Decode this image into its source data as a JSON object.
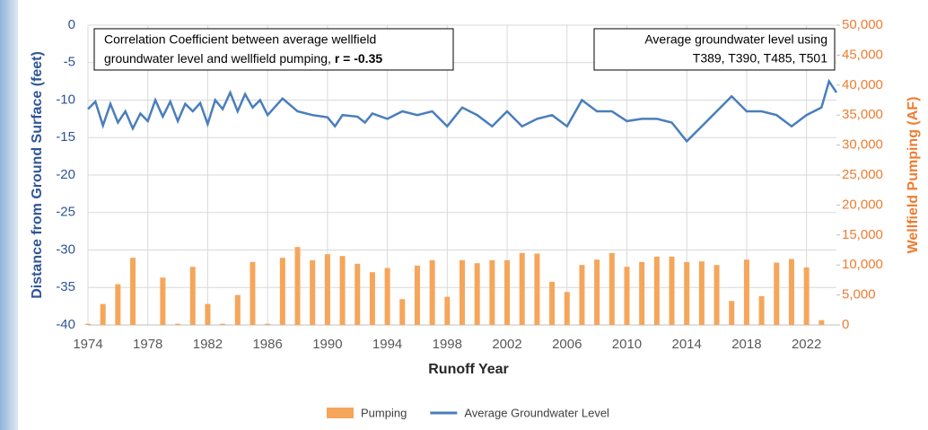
{
  "chart_data": {
    "type": "bar-line",
    "x_label": "Runoff Year",
    "y_label": "Distance from Ground Surface (feet)",
    "y2_label": "Wellfield Pumping (AF)",
    "annotations": [
      {
        "lines": [
          "Correlation Coefficient between average wellfield",
          "groundwater level and wellfield pumping, "
        ],
        "bold": "r = -0.35"
      },
      {
        "lines": [
          "Average groundwater level using",
          "T389, T390, T485, T501"
        ]
      }
    ],
    "xlim": [
      1974,
      2024
    ],
    "xticks": [
      1974,
      1978,
      1982,
      1986,
      1990,
      1994,
      1998,
      2002,
      2006,
      2010,
      2014,
      2018,
      2022
    ],
    "ylim": [
      -40,
      0
    ],
    "yticks": [
      0,
      -5,
      -10,
      -15,
      -20,
      -25,
      -30,
      -35,
      -40
    ],
    "y2lim": [
      0,
      50000
    ],
    "y2ticks": [
      0,
      {
        "value": 5000,
        "label": "5,000"
      },
      {
        "value": 10000,
        "label": "10,000"
      },
      {
        "value": 15000,
        "label": "15,000"
      },
      {
        "value": 20000,
        "label": "20,000"
      },
      {
        "value": 25000,
        "label": "25,000"
      },
      {
        "value": 30000,
        "label": "30,000"
      },
      {
        "value": 35000,
        "label": "35,000"
      },
      {
        "value": 40000,
        "label": "40,000"
      },
      {
        "value": 45000,
        "label": "45,000"
      },
      {
        "value": 50000,
        "label": "50,000"
      }
    ],
    "grid": true,
    "series": [
      {
        "name": "Pumping",
        "type": "bar",
        "axis": "y2",
        "color": "#f5a65b",
        "x": [
          1974,
          1975,
          1976,
          1977,
          1978,
          1979,
          1980,
          1981,
          1982,
          1983,
          1984,
          1985,
          1986,
          1987,
          1988,
          1989,
          1990,
          1991,
          1992,
          1993,
          1994,
          1995,
          1996,
          1997,
          1998,
          1999,
          2000,
          2001,
          2002,
          2003,
          2004,
          2005,
          2006,
          2007,
          2008,
          2009,
          2010,
          2011,
          2012,
          2013,
          2014,
          2015,
          2016,
          2017,
          2018,
          2019,
          2020,
          2021,
          2022,
          2023
        ],
        "values": [
          200,
          3500,
          6800,
          11200,
          0,
          7900,
          200,
          9700,
          3500,
          200,
          5000,
          10500,
          200,
          11200,
          13000,
          10800,
          11800,
          11500,
          10200,
          8800,
          9500,
          4300,
          9900,
          10800,
          4700,
          10800,
          10300,
          10800,
          10800,
          12000,
          11900,
          7200,
          5500,
          10000,
          10900,
          12000,
          9700,
          10500,
          11400,
          11400,
          10500,
          10600,
          10000,
          4000,
          10900,
          4800,
          10400,
          11000,
          9600,
          800
        ]
      },
      {
        "name": "Average Groundwater Level",
        "type": "line",
        "color": "#4a7ebb",
        "x": [
          1974,
          1974.5,
          1975,
          1975.5,
          1976,
          1976.5,
          1977,
          1977.5,
          1978,
          1978.5,
          1979,
          1979.5,
          1980,
          1980.5,
          1981,
          1981.5,
          1982,
          1982.5,
          1983,
          1983.5,
          1984,
          1984.5,
          1985,
          1985.5,
          1986,
          1987,
          1988,
          1989,
          1990,
          1990.5,
          1991,
          1992,
          1992.5,
          1993,
          1994,
          1995,
          1996,
          1997,
          1998,
          1999,
          2000,
          2001,
          2002,
          2003,
          2004,
          2005,
          2006,
          2007,
          2008,
          2009,
          2010,
          2011,
          2012,
          2013,
          2014,
          2015,
          2016,
          2017,
          2018,
          2019,
          2020,
          2021,
          2022,
          2023,
          2023.5,
          2024
        ],
        "values": [
          -11.2,
          -10.2,
          -13.4,
          -10.5,
          -13,
          -11.5,
          -13.8,
          -11.8,
          -12.8,
          -10,
          -12.2,
          -10.2,
          -12.8,
          -10.5,
          -11.5,
          -10.4,
          -13.2,
          -10,
          -11.2,
          -9,
          -11.5,
          -9.2,
          -11,
          -10,
          -12,
          -9.8,
          -11.5,
          -12,
          -12.3,
          -13.5,
          -12,
          -12.2,
          -13,
          -11.8,
          -12.5,
          -11.5,
          -12,
          -11.5,
          -13.5,
          -11,
          -12,
          -13.5,
          -11.5,
          -13.5,
          -12.5,
          -12,
          -13.5,
          -10,
          -11.5,
          -11.5,
          -12.8,
          -12.5,
          -12.5,
          -13,
          -15.5,
          -13.5,
          -11.5,
          -9.5,
          -11.5,
          -11.5,
          -12,
          -13.5,
          -12,
          -11,
          -7.5,
          -9
        ]
      }
    ]
  }
}
